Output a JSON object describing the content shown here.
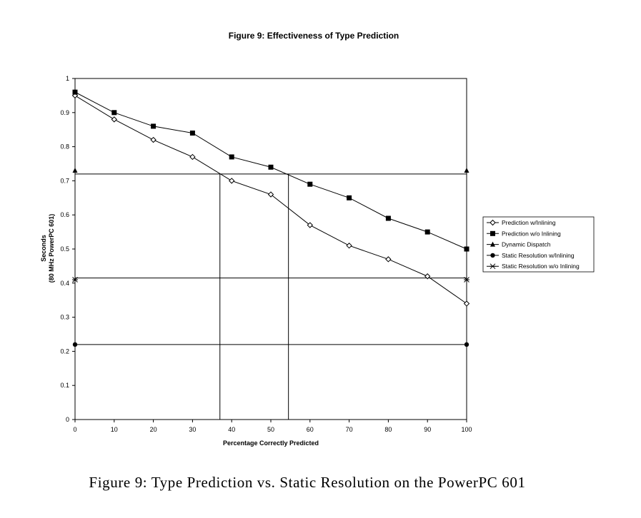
{
  "chart_data": {
    "type": "line",
    "title": "Figure 9: Effectiveness of Type Prediction",
    "xlabel": "Percentage Correctly Predicted",
    "ylabel_line1": "Seconds",
    "ylabel_line2": "(80 MHz PowerPC 601)",
    "xlim": [
      0,
      100
    ],
    "ylim": [
      0,
      1
    ],
    "xticks": [
      0,
      10,
      20,
      30,
      40,
      50,
      60,
      70,
      80,
      90,
      100
    ],
    "yticks": [
      0,
      0.1,
      0.2,
      0.3,
      0.4,
      0.5,
      0.6,
      0.7,
      0.8,
      0.9,
      1
    ],
    "xtick_labels": [
      "0",
      "10",
      "20",
      "30",
      "40",
      "50",
      "60",
      "70",
      "80",
      "90",
      "100"
    ],
    "ytick_labels": [
      "0",
      "0.1",
      "0.2",
      "0.3",
      "0.4",
      "0.5",
      "0.6",
      "0.7",
      "0.8",
      "0.9",
      "1"
    ],
    "grid": false,
    "legend_position": "right",
    "series": [
      {
        "name": "Prediction w/Inlining",
        "marker": "diamond-open",
        "x": [
          0,
          10,
          20,
          30,
          40,
          50,
          60,
          70,
          80,
          90,
          100
        ],
        "y": [
          0.95,
          0.88,
          0.82,
          0.77,
          0.7,
          0.66,
          0.57,
          0.51,
          0.47,
          0.42,
          0.34
        ]
      },
      {
        "name": "Prediction w/o Inlining",
        "marker": "square-filled",
        "x": [
          0,
          10,
          20,
          30,
          40,
          50,
          60,
          70,
          80,
          90,
          100
        ],
        "y": [
          0.96,
          0.9,
          0.86,
          0.84,
          0.77,
          0.74,
          0.69,
          0.65,
          0.59,
          0.55,
          0.5
        ]
      },
      {
        "name": "Dynamic Dispatch",
        "marker": "triangle-filled",
        "x": [
          0,
          100
        ],
        "y": [
          0.73,
          0.73
        ]
      },
      {
        "name": "Static Resolution w/Inlining",
        "marker": "circle-filled",
        "x": [
          0,
          100
        ],
        "y": [
          0.22,
          0.22
        ]
      },
      {
        "name": "Static Resolution w/o Inlining",
        "marker": "asterisk",
        "x": [
          0,
          100
        ],
        "y": [
          0.41,
          0.41
        ]
      }
    ],
    "reference_lines": {
      "horizontal": [
        0.72,
        0.415,
        0.22
      ],
      "vertical": [
        37,
        54.5
      ]
    }
  },
  "caption": "Figure 9: Type Prediction vs. Static Resolution on the PowerPC 601"
}
